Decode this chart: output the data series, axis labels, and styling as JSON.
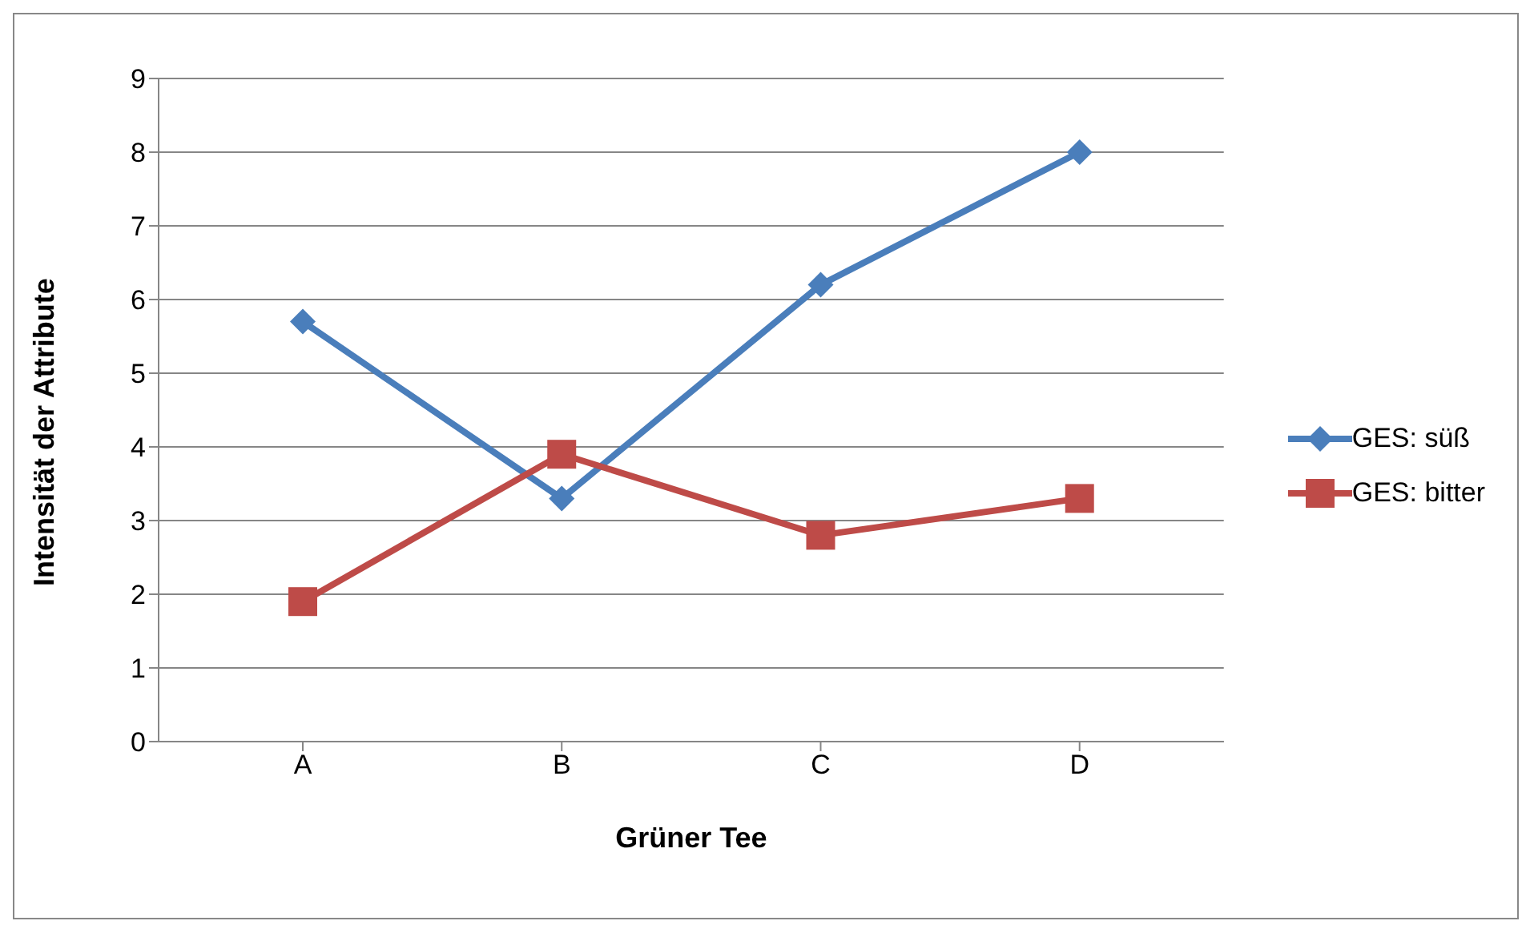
{
  "chart_data": {
    "type": "line",
    "xlabel": "Grüner Tee",
    "ylabel": "Intensität der Attribute",
    "categories": [
      "A",
      "B",
      "C",
      "D"
    ],
    "series": [
      {
        "name": "GES: süß",
        "color": "#4a7ebb",
        "marker": "diamond",
        "values": [
          5.7,
          3.3,
          6.2,
          8.0
        ]
      },
      {
        "name": "GES: bitter",
        "color": "#be4b48",
        "marker": "square",
        "values": [
          1.9,
          3.9,
          2.8,
          3.3
        ]
      }
    ],
    "ylim": [
      0,
      9
    ],
    "yticks": [
      0,
      1,
      2,
      3,
      4,
      5,
      6,
      7,
      8,
      9
    ],
    "grid": "y",
    "legend": "right",
    "line_style": "solid"
  }
}
